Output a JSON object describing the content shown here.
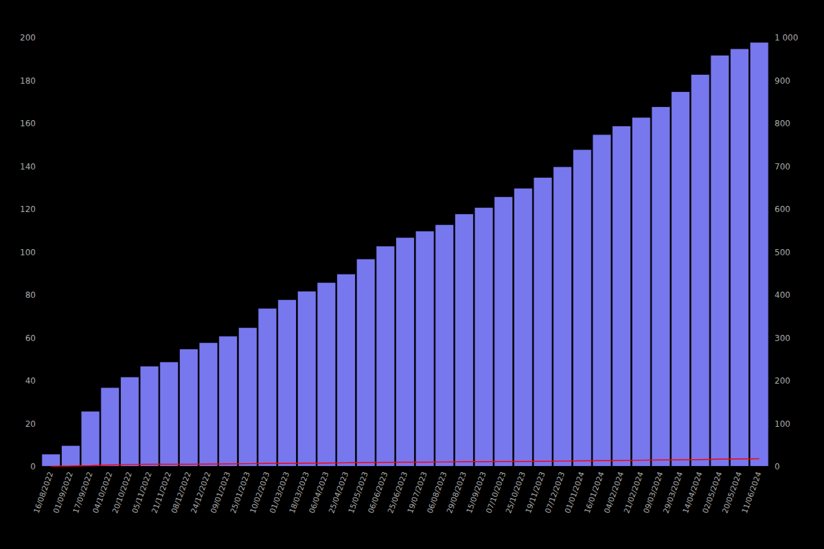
{
  "chart_data": {
    "type": "bar",
    "categories": [
      "16/08/2022",
      "01/09/2022",
      "17/09/2022",
      "04/10/2022",
      "20/10/2022",
      "05/11/2022",
      "21/11/2022",
      "08/12/2022",
      "24/12/2022",
      "09/01/2023",
      "25/01/2023",
      "10/02/2023",
      "01/03/2023",
      "18/03/2023",
      "06/04/2023",
      "25/04/2023",
      "15/05/2023",
      "06/06/2023",
      "25/06/2023",
      "19/07/2023",
      "06/08/2023",
      "29/08/2023",
      "15/09/2023",
      "07/10/2023",
      "25/10/2023",
      "19/11/2023",
      "07/12/2023",
      "01/01/2024",
      "16/01/2024",
      "04/02/2024",
      "21/02/2024",
      "09/03/2024",
      "29/03/2024",
      "14/04/2024",
      "02/05/2024",
      "20/05/2024",
      "11/06/2024"
    ],
    "series": [
      {
        "type": "bar",
        "color": "#7777ee",
        "values": [
          6,
          10,
          26,
          37,
          42,
          47,
          49,
          55,
          58,
          61,
          65,
          74,
          78,
          82,
          86,
          90,
          97,
          103,
          107,
          110,
          113,
          118,
          121,
          126,
          130,
          135,
          140,
          148,
          155,
          159,
          163,
          168,
          175,
          183,
          192,
          195,
          198
        ]
      },
      {
        "type": "line",
        "color": "#ff0000",
        "values": [
          0.2,
          0.3,
          0.5,
          0.8,
          1.0,
          1.1,
          1.1,
          1.1,
          1.2,
          1.3,
          1.4,
          1.5,
          1.5,
          1.6,
          1.7,
          1.8,
          1.9,
          2.0,
          2.1,
          2.1,
          2.2,
          2.3,
          2.3,
          2.4,
          2.4,
          2.5,
          2.6,
          2.7,
          2.8,
          2.9,
          3.0,
          3.1,
          3.2,
          3.3,
          3.5,
          3.6,
          3.7
        ]
      }
    ],
    "ylim": [
      0,
      200
    ],
    "yticks": [
      0,
      20,
      40,
      60,
      80,
      100,
      120,
      140,
      160,
      180,
      200
    ],
    "y2lim": [
      0,
      1000
    ],
    "y2ticks": [
      0,
      100,
      200,
      300,
      400,
      500,
      600,
      700,
      800,
      900,
      {
        "value": 1000,
        "label": "1 000"
      }
    ],
    "grid": false
  }
}
